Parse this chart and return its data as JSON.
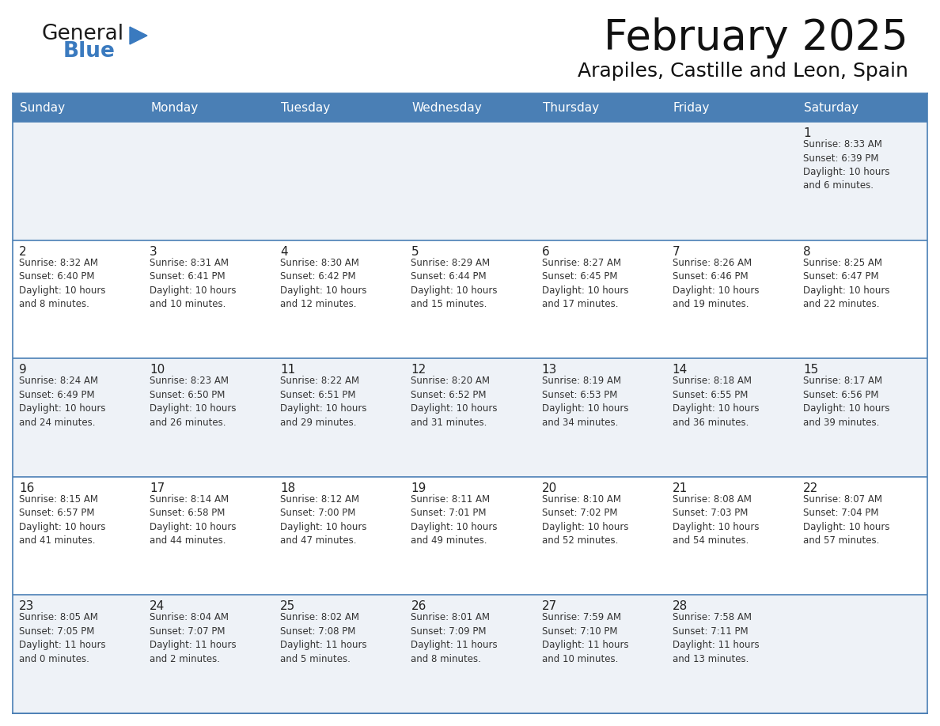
{
  "title": "February 2025",
  "subtitle": "Arapiles, Castille and Leon, Spain",
  "header_color": "#4a7fb5",
  "header_text_color": "#ffffff",
  "row_bg_shaded": "#eef2f7",
  "row_bg_white": "#ffffff",
  "border_color": "#4a7fb5",
  "text_color": "#222222",
  "info_color": "#333333",
  "days_of_week": [
    "Sunday",
    "Monday",
    "Tuesday",
    "Wednesday",
    "Thursday",
    "Friday",
    "Saturday"
  ],
  "weeks": [
    [
      {
        "day": "",
        "info": ""
      },
      {
        "day": "",
        "info": ""
      },
      {
        "day": "",
        "info": ""
      },
      {
        "day": "",
        "info": ""
      },
      {
        "day": "",
        "info": ""
      },
      {
        "day": "",
        "info": ""
      },
      {
        "day": "1",
        "info": "Sunrise: 8:33 AM\nSunset: 6:39 PM\nDaylight: 10 hours\nand 6 minutes."
      }
    ],
    [
      {
        "day": "2",
        "info": "Sunrise: 8:32 AM\nSunset: 6:40 PM\nDaylight: 10 hours\nand 8 minutes."
      },
      {
        "day": "3",
        "info": "Sunrise: 8:31 AM\nSunset: 6:41 PM\nDaylight: 10 hours\nand 10 minutes."
      },
      {
        "day": "4",
        "info": "Sunrise: 8:30 AM\nSunset: 6:42 PM\nDaylight: 10 hours\nand 12 minutes."
      },
      {
        "day": "5",
        "info": "Sunrise: 8:29 AM\nSunset: 6:44 PM\nDaylight: 10 hours\nand 15 minutes."
      },
      {
        "day": "6",
        "info": "Sunrise: 8:27 AM\nSunset: 6:45 PM\nDaylight: 10 hours\nand 17 minutes."
      },
      {
        "day": "7",
        "info": "Sunrise: 8:26 AM\nSunset: 6:46 PM\nDaylight: 10 hours\nand 19 minutes."
      },
      {
        "day": "8",
        "info": "Sunrise: 8:25 AM\nSunset: 6:47 PM\nDaylight: 10 hours\nand 22 minutes."
      }
    ],
    [
      {
        "day": "9",
        "info": "Sunrise: 8:24 AM\nSunset: 6:49 PM\nDaylight: 10 hours\nand 24 minutes."
      },
      {
        "day": "10",
        "info": "Sunrise: 8:23 AM\nSunset: 6:50 PM\nDaylight: 10 hours\nand 26 minutes."
      },
      {
        "day": "11",
        "info": "Sunrise: 8:22 AM\nSunset: 6:51 PM\nDaylight: 10 hours\nand 29 minutes."
      },
      {
        "day": "12",
        "info": "Sunrise: 8:20 AM\nSunset: 6:52 PM\nDaylight: 10 hours\nand 31 minutes."
      },
      {
        "day": "13",
        "info": "Sunrise: 8:19 AM\nSunset: 6:53 PM\nDaylight: 10 hours\nand 34 minutes."
      },
      {
        "day": "14",
        "info": "Sunrise: 8:18 AM\nSunset: 6:55 PM\nDaylight: 10 hours\nand 36 minutes."
      },
      {
        "day": "15",
        "info": "Sunrise: 8:17 AM\nSunset: 6:56 PM\nDaylight: 10 hours\nand 39 minutes."
      }
    ],
    [
      {
        "day": "16",
        "info": "Sunrise: 8:15 AM\nSunset: 6:57 PM\nDaylight: 10 hours\nand 41 minutes."
      },
      {
        "day": "17",
        "info": "Sunrise: 8:14 AM\nSunset: 6:58 PM\nDaylight: 10 hours\nand 44 minutes."
      },
      {
        "day": "18",
        "info": "Sunrise: 8:12 AM\nSunset: 7:00 PM\nDaylight: 10 hours\nand 47 minutes."
      },
      {
        "day": "19",
        "info": "Sunrise: 8:11 AM\nSunset: 7:01 PM\nDaylight: 10 hours\nand 49 minutes."
      },
      {
        "day": "20",
        "info": "Sunrise: 8:10 AM\nSunset: 7:02 PM\nDaylight: 10 hours\nand 52 minutes."
      },
      {
        "day": "21",
        "info": "Sunrise: 8:08 AM\nSunset: 7:03 PM\nDaylight: 10 hours\nand 54 minutes."
      },
      {
        "day": "22",
        "info": "Sunrise: 8:07 AM\nSunset: 7:04 PM\nDaylight: 10 hours\nand 57 minutes."
      }
    ],
    [
      {
        "day": "23",
        "info": "Sunrise: 8:05 AM\nSunset: 7:05 PM\nDaylight: 11 hours\nand 0 minutes."
      },
      {
        "day": "24",
        "info": "Sunrise: 8:04 AM\nSunset: 7:07 PM\nDaylight: 11 hours\nand 2 minutes."
      },
      {
        "day": "25",
        "info": "Sunrise: 8:02 AM\nSunset: 7:08 PM\nDaylight: 11 hours\nand 5 minutes."
      },
      {
        "day": "26",
        "info": "Sunrise: 8:01 AM\nSunset: 7:09 PM\nDaylight: 11 hours\nand 8 minutes."
      },
      {
        "day": "27",
        "info": "Sunrise: 7:59 AM\nSunset: 7:10 PM\nDaylight: 11 hours\nand 10 minutes."
      },
      {
        "day": "28",
        "info": "Sunrise: 7:58 AM\nSunset: 7:11 PM\nDaylight: 11 hours\nand 13 minutes."
      },
      {
        "day": "",
        "info": ""
      }
    ]
  ],
  "logo_text1": "General",
  "logo_text2": "Blue",
  "logo_text1_color": "#1a1a1a",
  "logo_text2_color": "#3a7abf",
  "logo_triangle_color": "#3a7abf",
  "title_fontsize": 38,
  "subtitle_fontsize": 18,
  "header_fontsize": 11,
  "day_num_fontsize": 11,
  "info_fontsize": 8.5
}
